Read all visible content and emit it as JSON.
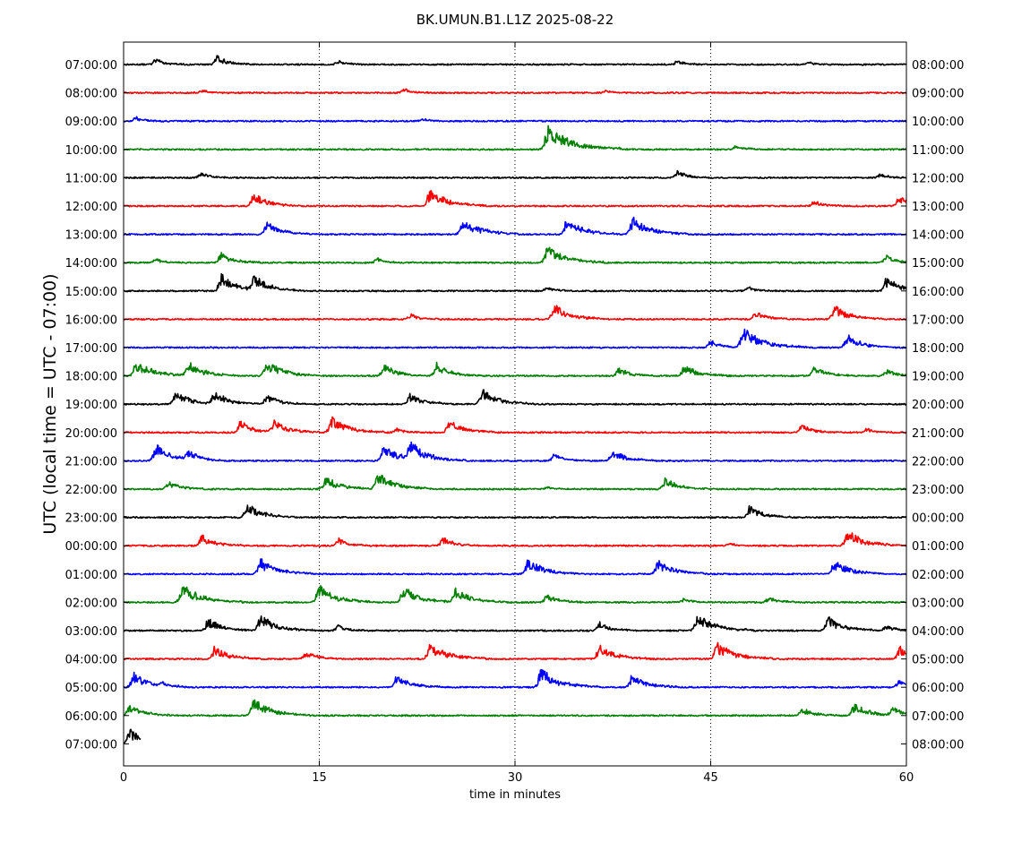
{
  "chart_data": {
    "type": "line",
    "title": "BK.UMUN.B1.L1Z 2025-08-22",
    "xlabel": "time in minutes",
    "ylabel": "UTC (local time = UTC - 07:00)",
    "xlim": [
      0,
      60
    ],
    "xticks": [
      "0",
      "15",
      "30",
      "45",
      "60"
    ],
    "vertical_grid_minutes": [
      15,
      30,
      45
    ],
    "grid": "dotted vertical lines at 15, 30, 45",
    "left_tick_labels": [
      "07:00:00",
      "08:00:00",
      "09:00:00",
      "10:00:00",
      "11:00:00",
      "12:00:00",
      "13:00:00",
      "14:00:00",
      "15:00:00",
      "16:00:00",
      "17:00:00",
      "18:00:00",
      "19:00:00",
      "20:00:00",
      "21:00:00",
      "22:00:00",
      "23:00:00",
      "00:00:00",
      "01:00:00",
      "02:00:00",
      "03:00:00",
      "04:00:00",
      "05:00:00",
      "06:00:00",
      "07:00:00"
    ],
    "right_tick_labels": [
      "08:00:00",
      "09:00:00",
      "10:00:00",
      "11:00:00",
      "12:00:00",
      "13:00:00",
      "14:00:00",
      "15:00:00",
      "16:00:00",
      "17:00:00",
      "18:00:00",
      "19:00:00",
      "20:00:00",
      "21:00:00",
      "22:00:00",
      "23:00:00",
      "00:00:00",
      "01:00:00",
      "02:00:00",
      "03:00:00",
      "04:00:00",
      "05:00:00",
      "06:00:00",
      "07:00:00",
      "08:00:00"
    ],
    "color_cycle": [
      "#000000",
      "#ff0000",
      "#0000ff",
      "#008000"
    ],
    "series": [
      {
        "start_minute": 0,
        "end_minute": 60,
        "color": "#000000",
        "events": [
          {
            "t": 2.5,
            "a": 0.4
          },
          {
            "t": 7.2,
            "a": 0.6
          },
          {
            "t": 16.5,
            "a": 0.3
          },
          {
            "t": 42.5,
            "a": 0.3
          },
          {
            "t": 52.5,
            "a": 0.2
          }
        ]
      },
      {
        "start_minute": 0,
        "end_minute": 60,
        "color": "#ff0000",
        "events": [
          {
            "t": 6,
            "a": 0.2
          },
          {
            "t": 21.5,
            "a": 0.3
          },
          {
            "t": 37,
            "a": 0.2
          }
        ]
      },
      {
        "start_minute": 0,
        "end_minute": 60,
        "color": "#0000ff",
        "events": [
          {
            "t": 1,
            "a": 0.3
          },
          {
            "t": 23,
            "a": 0.2
          }
        ]
      },
      {
        "start_minute": 0,
        "end_minute": 60,
        "color": "#008000",
        "events": [
          {
            "t": 32.5,
            "a": 1.7
          },
          {
            "t": 47,
            "a": 0.3
          }
        ]
      },
      {
        "start_minute": 0,
        "end_minute": 60,
        "color": "#000000",
        "events": [
          {
            "t": 6,
            "a": 0.4
          },
          {
            "t": 42.5,
            "a": 0.5
          },
          {
            "t": 58,
            "a": 0.3
          }
        ]
      },
      {
        "start_minute": 0,
        "end_minute": 60,
        "color": "#ff0000",
        "events": [
          {
            "t": 10,
            "a": 0.9
          },
          {
            "t": 23.5,
            "a": 1.2
          },
          {
            "t": 53,
            "a": 0.4
          },
          {
            "t": 59.5,
            "a": 0.8
          }
        ]
      },
      {
        "start_minute": 0,
        "end_minute": 60,
        "color": "#0000ff",
        "events": [
          {
            "t": 11,
            "a": 0.9
          },
          {
            "t": 26,
            "a": 1.2
          },
          {
            "t": 34,
            "a": 1.1
          },
          {
            "t": 39,
            "a": 1.2
          }
        ]
      },
      {
        "start_minute": 0,
        "end_minute": 60,
        "color": "#008000",
        "events": [
          {
            "t": 2.5,
            "a": 0.3
          },
          {
            "t": 7.5,
            "a": 0.7
          },
          {
            "t": 19.5,
            "a": 0.3
          },
          {
            "t": 32.5,
            "a": 1.2
          },
          {
            "t": 58.5,
            "a": 0.5
          }
        ]
      },
      {
        "start_minute": 0,
        "end_minute": 60,
        "color": "#000000",
        "events": [
          {
            "t": 7.5,
            "a": 1.2
          },
          {
            "t": 10,
            "a": 1.0
          },
          {
            "t": 32.5,
            "a": 0.3
          },
          {
            "t": 48,
            "a": 0.3
          },
          {
            "t": 58.5,
            "a": 1.0
          }
        ]
      },
      {
        "start_minute": 0,
        "end_minute": 60,
        "color": "#ff0000",
        "events": [
          {
            "t": 22,
            "a": 0.4
          },
          {
            "t": 33,
            "a": 1.1
          },
          {
            "t": 48.5,
            "a": 0.6
          },
          {
            "t": 54.5,
            "a": 1.0
          }
        ]
      },
      {
        "start_minute": 0,
        "end_minute": 60,
        "color": "#0000ff",
        "events": [
          {
            "t": 45,
            "a": 0.5
          },
          {
            "t": 47.5,
            "a": 1.4
          },
          {
            "t": 55.5,
            "a": 0.9
          }
        ]
      },
      {
        "start_minute": 0,
        "end_minute": 60,
        "color": "#008000",
        "events": [
          {
            "t": 1,
            "a": 1.1
          },
          {
            "t": 5,
            "a": 1.0
          },
          {
            "t": 11,
            "a": 1.1
          },
          {
            "t": 20,
            "a": 0.8
          },
          {
            "t": 24,
            "a": 0.9
          },
          {
            "t": 38,
            "a": 0.6
          },
          {
            "t": 43,
            "a": 0.8
          },
          {
            "t": 53,
            "a": 0.7
          },
          {
            "t": 58.5,
            "a": 0.5
          }
        ]
      },
      {
        "start_minute": 0,
        "end_minute": 60,
        "color": "#000000",
        "events": [
          {
            "t": 4,
            "a": 1.0
          },
          {
            "t": 7,
            "a": 0.9
          },
          {
            "t": 11,
            "a": 0.7
          },
          {
            "t": 22,
            "a": 0.8
          },
          {
            "t": 27.5,
            "a": 1.1
          }
        ]
      },
      {
        "start_minute": 0,
        "end_minute": 60,
        "color": "#ff0000",
        "events": [
          {
            "t": 9,
            "a": 0.8
          },
          {
            "t": 11.5,
            "a": 0.9
          },
          {
            "t": 16,
            "a": 1.1
          },
          {
            "t": 21,
            "a": 0.3
          },
          {
            "t": 25,
            "a": 0.9
          },
          {
            "t": 52,
            "a": 0.6
          },
          {
            "t": 57,
            "a": 0.3
          }
        ]
      },
      {
        "start_minute": 0,
        "end_minute": 60,
        "color": "#0000ff",
        "events": [
          {
            "t": 2.5,
            "a": 1.2
          },
          {
            "t": 5,
            "a": 0.6
          },
          {
            "t": 20,
            "a": 1.1
          },
          {
            "t": 22,
            "a": 1.2
          },
          {
            "t": 33,
            "a": 0.5
          },
          {
            "t": 37.5,
            "a": 0.8
          }
        ]
      },
      {
        "start_minute": 0,
        "end_minute": 60,
        "color": "#008000",
        "events": [
          {
            "t": 3.5,
            "a": 0.6
          },
          {
            "t": 15.5,
            "a": 0.9
          },
          {
            "t": 19.5,
            "a": 1.2
          },
          {
            "t": 32.5,
            "a": 0.2
          },
          {
            "t": 41.5,
            "a": 0.8
          }
        ]
      },
      {
        "start_minute": 0,
        "end_minute": 60,
        "color": "#000000",
        "events": [
          {
            "t": 9.5,
            "a": 1.0
          },
          {
            "t": 48,
            "a": 0.8
          }
        ]
      },
      {
        "start_minute": 0,
        "end_minute": 60,
        "color": "#ff0000",
        "events": [
          {
            "t": 6,
            "a": 0.8
          },
          {
            "t": 16.5,
            "a": 0.5
          },
          {
            "t": 24.5,
            "a": 0.6
          },
          {
            "t": 46.5,
            "a": 0.2
          },
          {
            "t": 55.5,
            "a": 1.1
          }
        ]
      },
      {
        "start_minute": 0,
        "end_minute": 60,
        "color": "#0000ff",
        "events": [
          {
            "t": 10.5,
            "a": 1.1
          },
          {
            "t": 31,
            "a": 1.1
          },
          {
            "t": 41,
            "a": 1.0
          },
          {
            "t": 54.5,
            "a": 1.0
          }
        ]
      },
      {
        "start_minute": 0,
        "end_minute": 60,
        "color": "#008000",
        "events": [
          {
            "t": 4.5,
            "a": 1.3
          },
          {
            "t": 15,
            "a": 1.2
          },
          {
            "t": 21.5,
            "a": 1.1
          },
          {
            "t": 25.5,
            "a": 1.0
          },
          {
            "t": 32.5,
            "a": 0.6
          },
          {
            "t": 43,
            "a": 0.3
          },
          {
            "t": 49.5,
            "a": 0.4
          }
        ]
      },
      {
        "start_minute": 0,
        "end_minute": 60,
        "color": "#000000",
        "events": [
          {
            "t": 6.5,
            "a": 0.9
          },
          {
            "t": 10.5,
            "a": 1.1
          },
          {
            "t": 16.5,
            "a": 0.4
          },
          {
            "t": 36.5,
            "a": 0.6
          },
          {
            "t": 44,
            "a": 1.2
          },
          {
            "t": 54,
            "a": 1.0
          },
          {
            "t": 58.5,
            "a": 0.4
          }
        ]
      },
      {
        "start_minute": 0,
        "end_minute": 60,
        "color": "#ff0000",
        "events": [
          {
            "t": 7,
            "a": 0.9
          },
          {
            "t": 14,
            "a": 0.6
          },
          {
            "t": 23.5,
            "a": 1.2
          },
          {
            "t": 36.5,
            "a": 1.0
          },
          {
            "t": 45.5,
            "a": 1.2
          },
          {
            "t": 59.5,
            "a": 0.9
          }
        ]
      },
      {
        "start_minute": 0,
        "end_minute": 60,
        "color": "#0000ff",
        "events": [
          {
            "t": 0.8,
            "a": 1.0
          },
          {
            "t": 3,
            "a": 0.3
          },
          {
            "t": 21,
            "a": 0.9
          },
          {
            "t": 32,
            "a": 1.3
          },
          {
            "t": 39,
            "a": 0.9
          },
          {
            "t": 59.5,
            "a": 0.6
          }
        ]
      },
      {
        "start_minute": 0,
        "end_minute": 60,
        "color": "#008000",
        "events": [
          {
            "t": 0.5,
            "a": 0.8
          },
          {
            "t": 10,
            "a": 1.2
          },
          {
            "t": 52,
            "a": 0.6
          },
          {
            "t": 56,
            "a": 0.9
          },
          {
            "t": 59,
            "a": 0.6
          }
        ]
      },
      {
        "start_minute": 0,
        "end_minute": 1.3,
        "color": "#000000",
        "events": [
          {
            "t": 0.5,
            "a": 1.0
          }
        ]
      }
    ]
  }
}
